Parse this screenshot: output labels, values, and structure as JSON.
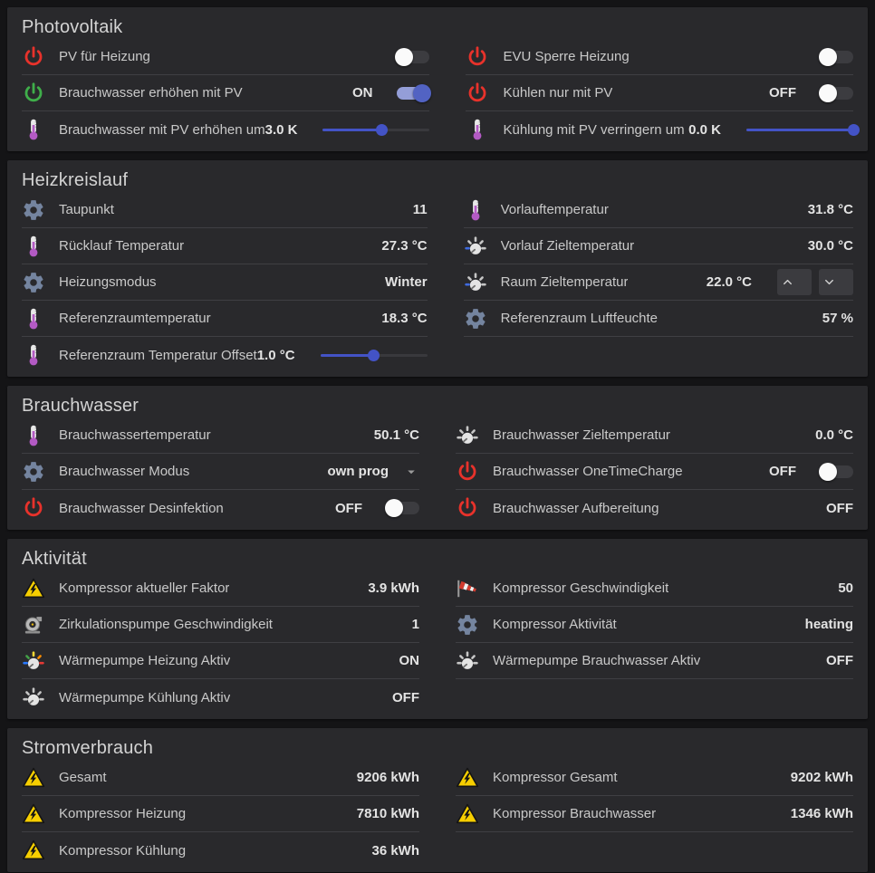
{
  "theme": {
    "accent_indigo": "#4353c6",
    "toggle_on_track": "#949ed8",
    "toggle_on_thumb": "#5263c3",
    "power_red": "#e8322b",
    "power_green": "#3fae4a",
    "warning_yellow": "#f6ce00",
    "gear_blue_gray": "#74849f",
    "thermometer_purple": "#b35ac4",
    "card_background": "#29292c",
    "page_background": "#141416"
  },
  "cards": [
    {
      "title": "Photovoltaik",
      "columns": [
        {
          "rows": [
            {
              "icon": "power-red",
              "label": "PV für Heizung",
              "control": "toggle",
              "state": "off",
              "state_label": ""
            },
            {
              "icon": "power-green",
              "label": "Brauchwasser erhöhen mit PV",
              "control": "toggle",
              "state": "on",
              "state_label": "ON"
            },
            {
              "icon": "thermometer",
              "label": "Brauchwasser mit PV erhöhen um",
              "control": "slider",
              "value": "3.0 K",
              "slider_percent": 55
            }
          ]
        },
        {
          "rows": [
            {
              "icon": "power-red",
              "label": "EVU Sperre Heizung",
              "control": "toggle",
              "state": "off",
              "state_label": ""
            },
            {
              "icon": "power-red",
              "label": "Kühlen nur mit PV",
              "control": "toggle",
              "state": "off",
              "state_label": "OFF"
            },
            {
              "icon": "thermometer",
              "label": "Kühlung mit PV verringern um",
              "control": "slider",
              "value": "0.0 K",
              "slider_percent": 100
            }
          ]
        }
      ]
    },
    {
      "title": "Heizkreislauf",
      "columns": [
        {
          "rows": [
            {
              "icon": "gear",
              "label": "Taupunkt",
              "control": "text",
              "value": "11"
            },
            {
              "icon": "thermometer",
              "label": "Rücklauf Temperatur",
              "control": "text",
              "value": "27.3 °C"
            },
            {
              "icon": "gear",
              "label": "Heizungsmodus",
              "control": "text",
              "value": "Winter"
            },
            {
              "icon": "thermometer",
              "label": "Referenzraumtemperatur",
              "control": "text",
              "value": "18.3 °C"
            },
            {
              "icon": "thermometer",
              "label": "Referenzraum Temperatur Offset",
              "control": "slider",
              "value": "1.0 °C",
              "slider_percent": 50
            }
          ]
        },
        {
          "rows": [
            {
              "icon": "thermometer",
              "label": "Vorlauftemperatur",
              "control": "text",
              "value": "31.8 °C"
            },
            {
              "icon": "knob-blue",
              "label": "Vorlauf Zieltemperatur",
              "control": "text",
              "value": "30.0 °C"
            },
            {
              "icon": "knob-blue",
              "label": "Raum Zieltemperatur",
              "control": "stepper",
              "value": "22.0 °C"
            },
            {
              "icon": "gear",
              "label": "Referenzraum Luftfeuchte",
              "control": "text",
              "value": "57 %"
            }
          ]
        }
      ]
    },
    {
      "title": "Brauchwasser",
      "columns": [
        {
          "rows": [
            {
              "icon": "thermometer",
              "label": "Brauchwassertemperatur",
              "control": "text",
              "value": "50.1 °C"
            },
            {
              "icon": "gear",
              "label": "Brauchwasser Modus",
              "control": "select",
              "value": "own prog"
            },
            {
              "icon": "power-red",
              "label": "Brauchwasser Desinfektion",
              "control": "toggle",
              "state": "off",
              "state_label": "OFF"
            }
          ]
        },
        {
          "rows": [
            {
              "icon": "knob-gray",
              "label": "Brauchwasser Zieltemperatur",
              "control": "text",
              "value": "0.0 °C"
            },
            {
              "icon": "power-red",
              "label": "Brauchwasser OneTimeCharge",
              "control": "toggle",
              "state": "off",
              "state_label": "OFF"
            },
            {
              "icon": "power-red",
              "label": "Brauchwasser Aufbereitung",
              "control": "text",
              "value": "OFF"
            }
          ]
        }
      ]
    },
    {
      "title": "Aktivität",
      "columns": [
        {
          "rows": [
            {
              "icon": "warning",
              "label": "Kompressor aktueller Faktor",
              "control": "text",
              "value": "3.9 kWh"
            },
            {
              "icon": "pump",
              "label": "Zirkulationspumpe Geschwindigkeit",
              "control": "text",
              "value": "1"
            },
            {
              "icon": "gauge-rainbow",
              "label": "Wärmepumpe Heizung Aktiv",
              "control": "text",
              "value": "ON"
            },
            {
              "icon": "knob-gray",
              "label": "Wärmepumpe Kühlung Aktiv",
              "control": "text",
              "value": "OFF"
            }
          ]
        },
        {
          "rows": [
            {
              "icon": "windsock",
              "label": "Kompressor Geschwindigkeit",
              "control": "text",
              "value": "50"
            },
            {
              "icon": "gear",
              "label": "Kompressor Aktivität",
              "control": "text",
              "value": "heating"
            },
            {
              "icon": "knob-gray",
              "label": "Wärmepumpe Brauchwasser Aktiv",
              "control": "text",
              "value": "OFF"
            }
          ]
        }
      ]
    },
    {
      "title": "Stromverbrauch",
      "columns": [
        {
          "rows": [
            {
              "icon": "warning",
              "label": "Gesamt",
              "control": "text",
              "value": "9206 kWh"
            },
            {
              "icon": "warning",
              "label": "Kompressor Heizung",
              "control": "text",
              "value": "7810 kWh"
            },
            {
              "icon": "warning",
              "label": "Kompressor Kühlung",
              "control": "text",
              "value": "36 kWh"
            }
          ]
        },
        {
          "rows": [
            {
              "icon": "warning",
              "label": "Kompressor Gesamt",
              "control": "text",
              "value": "9202 kWh"
            },
            {
              "icon": "warning",
              "label": "Kompressor Brauchwasser",
              "control": "text",
              "value": "1346 kWh"
            }
          ]
        }
      ]
    }
  ]
}
